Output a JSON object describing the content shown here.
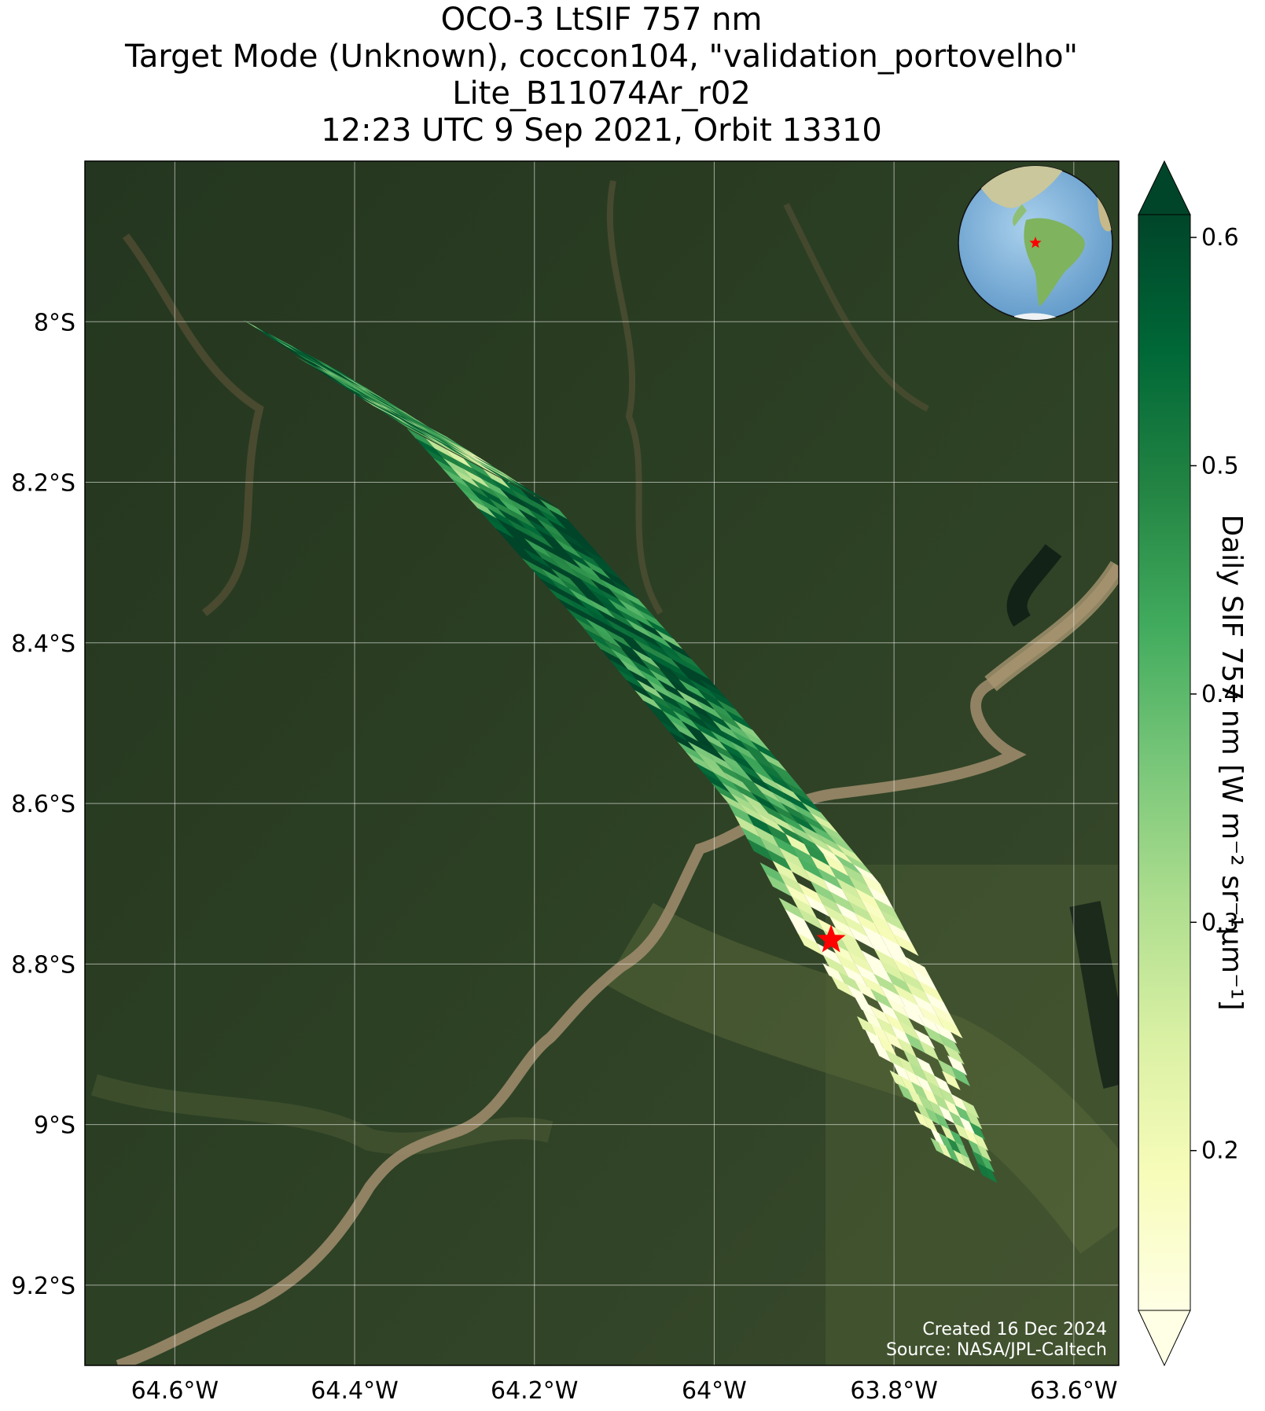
{
  "title": {
    "line1": "OCO-3 LtSIF 757 nm",
    "line2": "Target Mode (Unknown), coccon104, \"validation_portovelho\"",
    "line3": "Lite_B11074Ar_r02",
    "line4": "12:23 UTC 9 Sep 2021, Orbit 13310"
  },
  "map": {
    "lon_range": [
      -64.7,
      -63.55
    ],
    "lat_range": [
      -9.3,
      -7.8
    ],
    "lon_ticks": [
      {
        "value": -64.6,
        "label": "64.6°W"
      },
      {
        "value": -64.4,
        "label": "64.4°W"
      },
      {
        "value": -64.2,
        "label": "64.2°W"
      },
      {
        "value": -64.0,
        "label": "64°W"
      },
      {
        "value": -63.8,
        "label": "63.8°W"
      },
      {
        "value": -63.6,
        "label": "63.6°W"
      }
    ],
    "lat_ticks": [
      {
        "value": -8.0,
        "label": "8°S"
      },
      {
        "value": -8.2,
        "label": "8.2°S"
      },
      {
        "value": -8.4,
        "label": "8.4°S"
      },
      {
        "value": -8.6,
        "label": "8.6°S"
      },
      {
        "value": -8.8,
        "label": "8.8°S"
      },
      {
        "value": -9.0,
        "label": "9°S"
      },
      {
        "value": -9.2,
        "label": "9.2°S"
      }
    ],
    "target_site": {
      "lon": -63.87,
      "lat": -8.77,
      "marker": "red-star-icon"
    },
    "background": "satellite imagery (tropical forest, Madeira river)",
    "inset": "orthographic-globe-icon, South America with red star",
    "credit_line1": "Created 16 Dec 2024",
    "credit_line2": "Source: NASA/JPL-Caltech"
  },
  "chart_data": {
    "type": "heatmap",
    "title": "OCO-3 LtSIF 757 nm",
    "variable": "Daily SIF 757 nm",
    "swath_centerline": [
      {
        "lon": -64.47,
        "lat": -8.03
      },
      {
        "lon": -64.26,
        "lat": -8.18
      },
      {
        "lon": -64.07,
        "lat": -8.42
      },
      {
        "lon": -63.9,
        "lat": -8.65
      },
      {
        "lon": -63.79,
        "lat": -8.88
      },
      {
        "lon": -63.72,
        "lat": -9.05
      }
    ],
    "swath_samples": [
      {
        "lon": -64.45,
        "lat": -8.03,
        "sif": 0.55
      },
      {
        "lon": -64.4,
        "lat": -8.07,
        "sif": 0.42
      },
      {
        "lon": -64.33,
        "lat": -8.12,
        "sif": 0.5
      },
      {
        "lon": -64.28,
        "lat": -8.16,
        "sif": 0.3
      },
      {
        "lon": -64.22,
        "lat": -8.22,
        "sif": 0.58
      },
      {
        "lon": -64.17,
        "lat": -8.28,
        "sif": 0.6
      },
      {
        "lon": -64.12,
        "lat": -8.34,
        "sif": 0.55
      },
      {
        "lon": -64.07,
        "lat": -8.42,
        "sif": 0.48
      },
      {
        "lon": -64.02,
        "lat": -8.49,
        "sif": 0.52
      },
      {
        "lon": -63.97,
        "lat": -8.56,
        "sif": 0.45
      },
      {
        "lon": -63.92,
        "lat": -8.63,
        "sif": 0.38
      },
      {
        "lon": -63.88,
        "lat": -8.7,
        "sif": 0.22
      },
      {
        "lon": -63.85,
        "lat": -8.77,
        "sif": 0.15
      },
      {
        "lon": -63.81,
        "lat": -8.85,
        "sif": 0.18
      },
      {
        "lon": -63.77,
        "lat": -8.93,
        "sif": 0.2
      },
      {
        "lon": -63.73,
        "lat": -9.0,
        "sif": 0.28
      },
      {
        "lon": -63.7,
        "lat": -9.07,
        "sif": 0.55
      }
    ],
    "colorbar": {
      "label": "Daily SIF 757 nm [W m⁻² sr⁻¹µm⁻¹]",
      "colormap": "YlGn",
      "min": 0.13,
      "max": 0.61,
      "ticks": [
        {
          "value": 0.2,
          "label": "0.2"
        },
        {
          "value": 0.3,
          "label": "0.3"
        },
        {
          "value": 0.4,
          "label": "0.4"
        },
        {
          "value": 0.5,
          "label": "0.5"
        },
        {
          "value": 0.6,
          "label": "0.6"
        }
      ],
      "extend": "both"
    },
    "colors": {
      "accent_star": "#ff0000",
      "colormap_stops": [
        "#ffffe5",
        "#f7fcb9",
        "#d9f0a3",
        "#addd8e",
        "#78c679",
        "#41ab5d",
        "#238443",
        "#006837",
        "#004529"
      ]
    }
  }
}
